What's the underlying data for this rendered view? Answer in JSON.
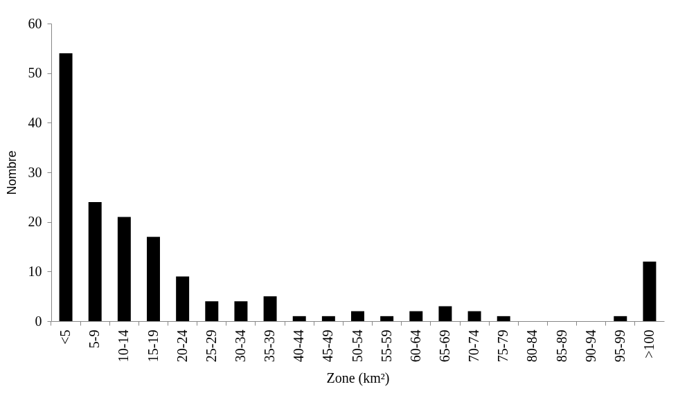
{
  "chart_data": {
    "type": "bar",
    "xlabel": "Zone (km²)",
    "ylabel": "Nombre",
    "categories": [
      "<5",
      "5-9",
      "10-14",
      "15-19",
      "20-24",
      "25-29",
      "30-34",
      "35-39",
      "40-44",
      "45-49",
      "50-54",
      "55-59",
      "60-64",
      "65-69",
      "70-74",
      "75-79",
      "80-84",
      "85-89",
      "90-94",
      "95-99",
      ">100"
    ],
    "values": [
      54,
      24,
      21,
      17,
      9,
      4,
      4,
      5,
      1,
      1,
      2,
      1,
      2,
      3,
      2,
      1,
      0,
      0,
      0,
      1,
      12
    ],
    "color": "#000000",
    "ylim": [
      0,
      60
    ],
    "yticks": [
      0,
      10,
      20,
      30,
      40,
      50,
      60
    ],
    "grid": false
  }
}
